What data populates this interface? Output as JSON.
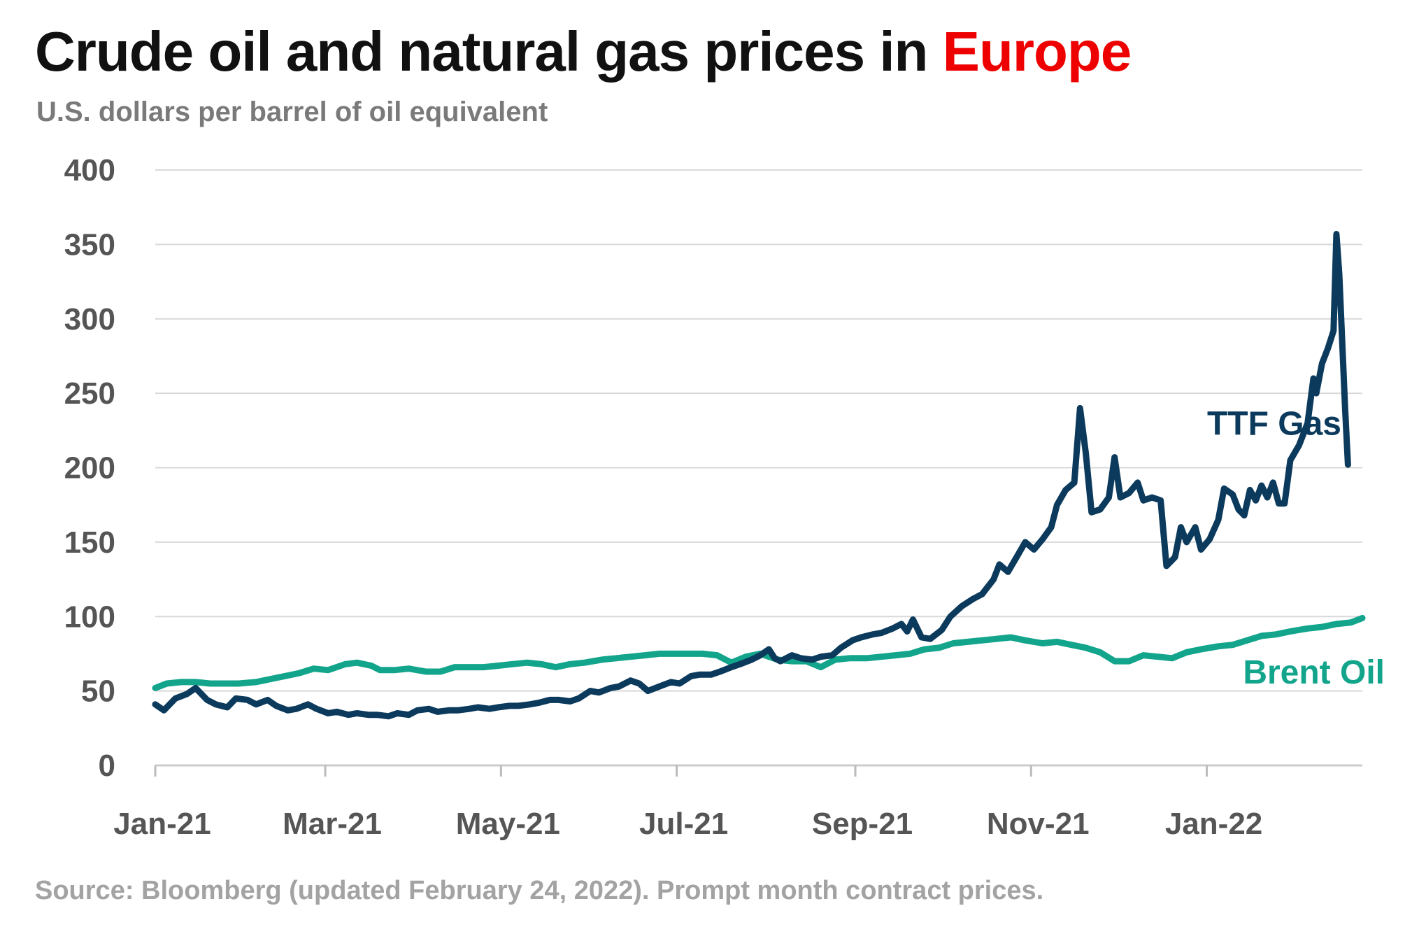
{
  "header": {
    "title_main": "Crude oil and natural gas prices in",
    "title_highlight": "Europe",
    "subtitle": "U.S. dollars per barrel of oil equivalent"
  },
  "footer": {
    "source": "Source: Bloomberg (updated February 24, 2022). Prompt month contract prices."
  },
  "colors": {
    "title_highlight": "#ee0000",
    "ttf": "#0b3a5c",
    "brent": "#12a58c",
    "grid": "#d9d9d9"
  },
  "chart_data": {
    "type": "line",
    "title": "Crude oil and natural gas prices in Europe",
    "subtitle": "U.S. dollars per barrel of oil equivalent",
    "ylim": [
      0,
      400
    ],
    "yticks": [
      0,
      50,
      100,
      150,
      200,
      250,
      300,
      350,
      400
    ],
    "xlim": [
      "2021-01-01",
      "2022-02-24"
    ],
    "xticks": [
      {
        "date": "2021-01-01",
        "label": "Jan-21"
      },
      {
        "date": "2021-03-01",
        "label": "Mar-21"
      },
      {
        "date": "2021-05-01",
        "label": "May-21"
      },
      {
        "date": "2021-07-01",
        "label": "Jul-21"
      },
      {
        "date": "2021-09-01",
        "label": "Sep-21"
      },
      {
        "date": "2021-11-01",
        "label": "Nov-21"
      },
      {
        "date": "2022-01-01",
        "label": "Jan-22"
      }
    ],
    "grid": true,
    "legend": "inline labels at line ends",
    "series": [
      {
        "name": "TTF Gas",
        "color": "#0b3a5c",
        "points": [
          [
            "2021-01-01",
            41
          ],
          [
            "2021-01-04",
            37
          ],
          [
            "2021-01-08",
            45
          ],
          [
            "2021-01-12",
            48
          ],
          [
            "2021-01-15",
            52
          ],
          [
            "2021-01-19",
            44
          ],
          [
            "2021-01-22",
            41
          ],
          [
            "2021-01-26",
            39
          ],
          [
            "2021-01-29",
            45
          ],
          [
            "2021-02-02",
            44
          ],
          [
            "2021-02-05",
            41
          ],
          [
            "2021-02-09",
            44
          ],
          [
            "2021-02-12",
            40
          ],
          [
            "2021-02-16",
            37
          ],
          [
            "2021-02-19",
            38
          ],
          [
            "2021-02-23",
            41
          ],
          [
            "2021-02-26",
            38
          ],
          [
            "2021-03-02",
            35
          ],
          [
            "2021-03-05",
            36
          ],
          [
            "2021-03-09",
            34
          ],
          [
            "2021-03-12",
            35
          ],
          [
            "2021-03-16",
            34
          ],
          [
            "2021-03-19",
            34
          ],
          [
            "2021-03-23",
            33
          ],
          [
            "2021-03-26",
            35
          ],
          [
            "2021-03-30",
            34
          ],
          [
            "2021-04-02",
            37
          ],
          [
            "2021-04-06",
            38
          ],
          [
            "2021-04-09",
            36
          ],
          [
            "2021-04-13",
            37
          ],
          [
            "2021-04-16",
            37
          ],
          [
            "2021-04-20",
            38
          ],
          [
            "2021-04-23",
            39
          ],
          [
            "2021-04-27",
            38
          ],
          [
            "2021-04-30",
            39
          ],
          [
            "2021-05-04",
            40
          ],
          [
            "2021-05-07",
            40
          ],
          [
            "2021-05-11",
            41
          ],
          [
            "2021-05-14",
            42
          ],
          [
            "2021-05-18",
            44
          ],
          [
            "2021-05-21",
            44
          ],
          [
            "2021-05-25",
            43
          ],
          [
            "2021-05-28",
            45
          ],
          [
            "2021-06-01",
            50
          ],
          [
            "2021-06-04",
            49
          ],
          [
            "2021-06-08",
            52
          ],
          [
            "2021-06-11",
            53
          ],
          [
            "2021-06-15",
            57
          ],
          [
            "2021-06-18",
            55
          ],
          [
            "2021-06-21",
            50
          ],
          [
            "2021-06-25",
            53
          ],
          [
            "2021-06-29",
            56
          ],
          [
            "2021-07-02",
            55
          ],
          [
            "2021-07-06",
            60
          ],
          [
            "2021-07-09",
            61
          ],
          [
            "2021-07-13",
            61
          ],
          [
            "2021-07-16",
            63
          ],
          [
            "2021-07-20",
            66
          ],
          [
            "2021-07-23",
            68
          ],
          [
            "2021-07-27",
            71
          ],
          [
            "2021-07-30",
            74
          ],
          [
            "2021-08-02",
            78
          ],
          [
            "2021-08-04",
            72
          ],
          [
            "2021-08-06",
            70
          ],
          [
            "2021-08-10",
            74
          ],
          [
            "2021-08-13",
            72
          ],
          [
            "2021-08-17",
            71
          ],
          [
            "2021-08-20",
            73
          ],
          [
            "2021-08-24",
            74
          ],
          [
            "2021-08-27",
            79
          ],
          [
            "2021-08-31",
            84
          ],
          [
            "2021-09-03",
            86
          ],
          [
            "2021-09-07",
            88
          ],
          [
            "2021-09-10",
            89
          ],
          [
            "2021-09-14",
            92
          ],
          [
            "2021-09-17",
            95
          ],
          [
            "2021-09-19",
            90
          ],
          [
            "2021-09-21",
            98
          ],
          [
            "2021-09-24",
            86
          ],
          [
            "2021-09-27",
            85
          ],
          [
            "2021-10-01",
            91
          ],
          [
            "2021-10-04",
            100
          ],
          [
            "2021-10-08",
            107
          ],
          [
            "2021-10-12",
            112
          ],
          [
            "2021-10-15",
            115
          ],
          [
            "2021-10-19",
            125
          ],
          [
            "2021-10-21",
            135
          ],
          [
            "2021-10-24",
            130
          ],
          [
            "2021-10-27",
            140
          ],
          [
            "2021-10-30",
            150
          ],
          [
            "2021-11-02",
            145
          ],
          [
            "2021-11-05",
            152
          ],
          [
            "2021-11-08",
            160
          ],
          [
            "2021-11-10",
            175
          ],
          [
            "2021-11-13",
            185
          ],
          [
            "2021-11-16",
            190
          ],
          [
            "2021-11-18",
            240
          ],
          [
            "2021-11-20",
            210
          ],
          [
            "2021-11-22",
            170
          ],
          [
            "2021-11-25",
            172
          ],
          [
            "2021-11-28",
            180
          ],
          [
            "2021-11-30",
            207
          ],
          [
            "2021-12-02",
            180
          ],
          [
            "2021-12-05",
            183
          ],
          [
            "2021-12-08",
            190
          ],
          [
            "2021-12-10",
            178
          ],
          [
            "2021-12-13",
            180
          ],
          [
            "2021-12-16",
            178
          ],
          [
            "2021-12-18",
            134
          ],
          [
            "2021-12-21",
            140
          ],
          [
            "2021-12-23",
            160
          ],
          [
            "2021-12-25",
            150
          ],
          [
            "2021-12-28",
            160
          ],
          [
            "2021-12-30",
            145
          ],
          [
            "2022-01-02",
            152
          ],
          [
            "2022-01-05",
            165
          ],
          [
            "2022-01-07",
            186
          ],
          [
            "2022-01-10",
            182
          ],
          [
            "2022-01-12",
            172
          ],
          [
            "2022-01-14",
            168
          ],
          [
            "2022-01-16",
            185
          ],
          [
            "2022-01-18",
            178
          ],
          [
            "2022-01-20",
            188
          ],
          [
            "2022-01-22",
            180
          ],
          [
            "2022-01-24",
            190
          ],
          [
            "2022-01-26",
            176
          ],
          [
            "2022-01-28",
            176
          ],
          [
            "2022-01-30",
            205
          ],
          [
            "2022-02-02",
            215
          ],
          [
            "2022-02-05",
            230
          ],
          [
            "2022-02-07",
            260
          ],
          [
            "2022-02-08",
            250
          ],
          [
            "2022-02-10",
            270
          ],
          [
            "2022-02-12",
            280
          ],
          [
            "2022-02-14",
            292
          ],
          [
            "2022-02-15",
            357
          ],
          [
            "2022-02-16",
            330
          ],
          [
            "2022-02-18",
            240
          ],
          [
            "2022-02-19",
            202
          ]
        ]
      },
      {
        "name": "Brent Oil",
        "color": "#12a58c",
        "points": [
          [
            "2021-01-01",
            52
          ],
          [
            "2021-01-05",
            55
          ],
          [
            "2021-01-10",
            56
          ],
          [
            "2021-01-15",
            56
          ],
          [
            "2021-01-20",
            55
          ],
          [
            "2021-01-25",
            55
          ],
          [
            "2021-01-30",
            55
          ],
          [
            "2021-02-05",
            56
          ],
          [
            "2021-02-10",
            58
          ],
          [
            "2021-02-15",
            60
          ],
          [
            "2021-02-20",
            62
          ],
          [
            "2021-02-25",
            65
          ],
          [
            "2021-03-02",
            64
          ],
          [
            "2021-03-08",
            68
          ],
          [
            "2021-03-12",
            69
          ],
          [
            "2021-03-17",
            67
          ],
          [
            "2021-03-20",
            64
          ],
          [
            "2021-03-25",
            64
          ],
          [
            "2021-03-30",
            65
          ],
          [
            "2021-04-05",
            63
          ],
          [
            "2021-04-10",
            63
          ],
          [
            "2021-04-15",
            66
          ],
          [
            "2021-04-20",
            66
          ],
          [
            "2021-04-25",
            66
          ],
          [
            "2021-04-30",
            67
          ],
          [
            "2021-05-05",
            68
          ],
          [
            "2021-05-10",
            69
          ],
          [
            "2021-05-15",
            68
          ],
          [
            "2021-05-20",
            66
          ],
          [
            "2021-05-25",
            68
          ],
          [
            "2021-05-30",
            69
          ],
          [
            "2021-06-05",
            71
          ],
          [
            "2021-06-10",
            72
          ],
          [
            "2021-06-15",
            73
          ],
          [
            "2021-06-20",
            74
          ],
          [
            "2021-06-25",
            75
          ],
          [
            "2021-06-30",
            75
          ],
          [
            "2021-07-05",
            75
          ],
          [
            "2021-07-10",
            75
          ],
          [
            "2021-07-15",
            74
          ],
          [
            "2021-07-20",
            69
          ],
          [
            "2021-07-25",
            73
          ],
          [
            "2021-07-30",
            75
          ],
          [
            "2021-08-05",
            71
          ],
          [
            "2021-08-10",
            70
          ],
          [
            "2021-08-15",
            70
          ],
          [
            "2021-08-20",
            66
          ],
          [
            "2021-08-25",
            71
          ],
          [
            "2021-08-30",
            72
          ],
          [
            "2021-09-05",
            72
          ],
          [
            "2021-09-10",
            73
          ],
          [
            "2021-09-15",
            74
          ],
          [
            "2021-09-20",
            75
          ],
          [
            "2021-09-25",
            78
          ],
          [
            "2021-09-30",
            79
          ],
          [
            "2021-10-05",
            82
          ],
          [
            "2021-10-10",
            83
          ],
          [
            "2021-10-15",
            84
          ],
          [
            "2021-10-20",
            85
          ],
          [
            "2021-10-25",
            86
          ],
          [
            "2021-10-30",
            84
          ],
          [
            "2021-11-05",
            82
          ],
          [
            "2021-11-10",
            83
          ],
          [
            "2021-11-15",
            81
          ],
          [
            "2021-11-20",
            79
          ],
          [
            "2021-11-25",
            76
          ],
          [
            "2021-11-30",
            70
          ],
          [
            "2021-12-05",
            70
          ],
          [
            "2021-12-10",
            74
          ],
          [
            "2021-12-15",
            73
          ],
          [
            "2021-12-20",
            72
          ],
          [
            "2021-12-25",
            76
          ],
          [
            "2021-12-30",
            78
          ],
          [
            "2022-01-05",
            80
          ],
          [
            "2022-01-10",
            81
          ],
          [
            "2022-01-15",
            84
          ],
          [
            "2022-01-20",
            87
          ],
          [
            "2022-01-25",
            88
          ],
          [
            "2022-01-30",
            90
          ],
          [
            "2022-02-05",
            92
          ],
          [
            "2022-02-10",
            93
          ],
          [
            "2022-02-15",
            95
          ],
          [
            "2022-02-20",
            96
          ],
          [
            "2022-02-24",
            99
          ]
        ]
      }
    ]
  }
}
